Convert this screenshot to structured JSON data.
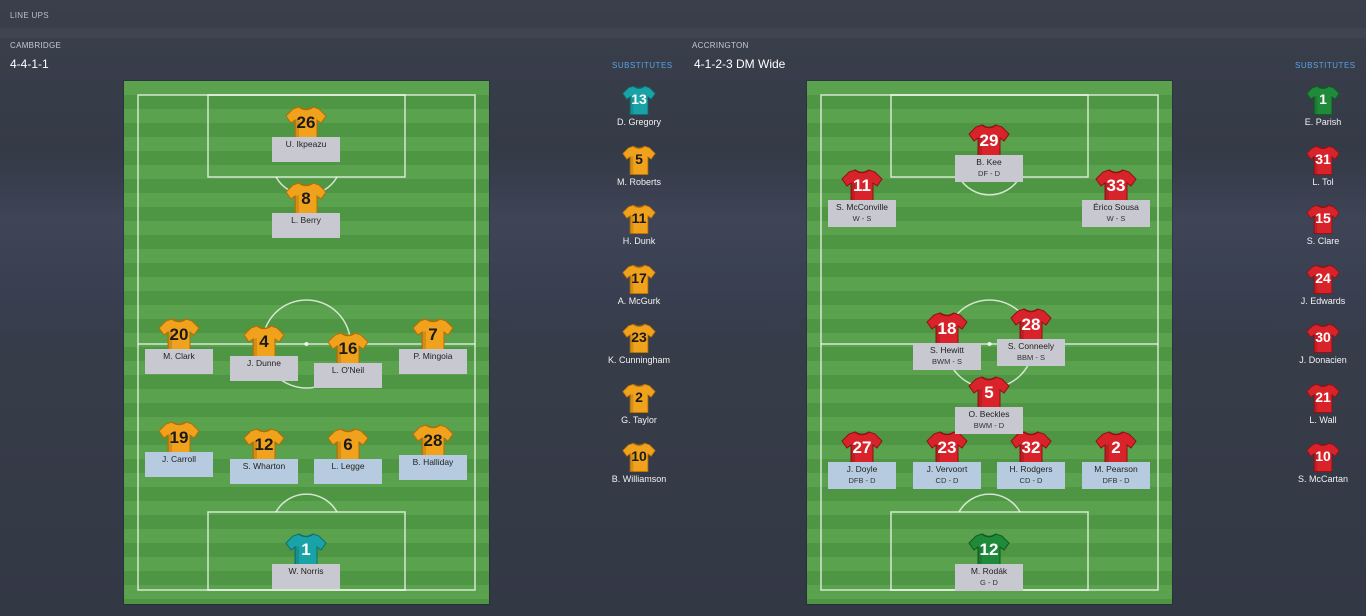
{
  "header": {
    "title": "LINE UPS"
  },
  "colors": {
    "home_shirt": "#f1a21c",
    "home_gk": "#1aa3a6",
    "away_shirt": "#d8232a",
    "away_gk": "#1f8a3a",
    "subs_title": "#5aa0e6"
  },
  "home": {
    "team": "CAMBRIDGE",
    "formation": "4-4-1-1",
    "subs_title": "SUBSTITUTES",
    "players": [
      {
        "number": "26",
        "name": "U. Ikpeazu",
        "role": ""
      },
      {
        "number": "8",
        "name": "L. Berry",
        "role": ""
      },
      {
        "number": "20",
        "name": "M. Clark",
        "role": ""
      },
      {
        "number": "4",
        "name": "J. Dunne",
        "role": ""
      },
      {
        "number": "16",
        "name": "L. O'Neil",
        "role": ""
      },
      {
        "number": "7",
        "name": "P. Mingoia",
        "role": ""
      },
      {
        "number": "19",
        "name": "J. Carroll",
        "role": ""
      },
      {
        "number": "12",
        "name": "S. Wharton",
        "role": ""
      },
      {
        "number": "6",
        "name": "L. Legge",
        "role": ""
      },
      {
        "number": "28",
        "name": "B. Halliday",
        "role": ""
      },
      {
        "number": "1",
        "name": "W. Norris",
        "role": ""
      }
    ],
    "subs": [
      {
        "number": "13",
        "name": "D. Gregory"
      },
      {
        "number": "5",
        "name": "M. Roberts"
      },
      {
        "number": "11",
        "name": "H. Dunk"
      },
      {
        "number": "17",
        "name": "A. McGurk"
      },
      {
        "number": "23",
        "name": "K. Cunningham"
      },
      {
        "number": "2",
        "name": "G. Taylor"
      },
      {
        "number": "10",
        "name": "B. Williamson"
      }
    ]
  },
  "away": {
    "team": "ACCRINGTON",
    "formation": "4-1-2-3 DM Wide",
    "subs_title": "SUBSTITUTES",
    "players": [
      {
        "number": "29",
        "name": "B. Kee",
        "role": "DF - D"
      },
      {
        "number": "11",
        "name": "S. McConville",
        "role": "W - S"
      },
      {
        "number": "33",
        "name": "Érico Sousa",
        "role": "W - S"
      },
      {
        "number": "18",
        "name": "S. Hewitt",
        "role": "BWM - S"
      },
      {
        "number": "28",
        "name": "S. Conneely",
        "role": "BBM - S"
      },
      {
        "number": "5",
        "name": "O. Beckles",
        "role": "BWM - D"
      },
      {
        "number": "27",
        "name": "J. Doyle",
        "role": "DFB - D"
      },
      {
        "number": "23",
        "name": "J. Vervoort",
        "role": "CD - D"
      },
      {
        "number": "32",
        "name": "H. Rodgers",
        "role": "CD - D"
      },
      {
        "number": "2",
        "name": "M. Pearson",
        "role": "DFB - D"
      },
      {
        "number": "12",
        "name": "M. Rodák",
        "role": "G - D"
      }
    ],
    "subs": [
      {
        "number": "1",
        "name": "E. Parish"
      },
      {
        "number": "31",
        "name": "L. Tol"
      },
      {
        "number": "15",
        "name": "S. Clare"
      },
      {
        "number": "24",
        "name": "J. Edwards"
      },
      {
        "number": "30",
        "name": "J. Donacien"
      },
      {
        "number": "21",
        "name": "L. Wall"
      },
      {
        "number": "10",
        "name": "S. McCartan"
      }
    ]
  }
}
